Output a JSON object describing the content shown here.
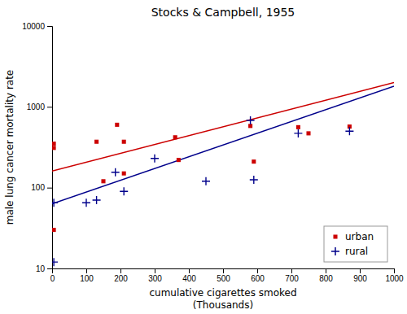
{
  "chart_data": {
    "type": "scatter",
    "title": "Stocks & Campbell, 1955",
    "xlabel": [
      "cumulative cigarettes smoked",
      "(Thousands)"
    ],
    "ylabel": "male lung cancer mortality rate",
    "xlim": [
      0,
      1000
    ],
    "ylim": [
      10,
      10000
    ],
    "xticks": [
      0,
      100,
      200,
      300,
      400,
      500,
      600,
      700,
      800,
      900,
      1000
    ],
    "yticks": [
      10,
      100,
      1000,
      10000
    ],
    "log": "y",
    "grid": false,
    "legend": "lower right",
    "series": [
      {
        "name": "urban",
        "type": "scatter",
        "marker": "square",
        "color": "#CC0000",
        "x": [
          5,
          5,
          5,
          130,
          150,
          190,
          210,
          210,
          360,
          370,
          580,
          590,
          720,
          750,
          870
        ],
        "values": [
          310,
          30,
          350,
          370,
          120,
          600,
          150,
          370,
          420,
          220,
          580,
          210,
          560,
          470,
          570
        ]
      },
      {
        "name": "rural",
        "type": "scatter",
        "marker": "plus",
        "color": "#00008B",
        "x": [
          5,
          5,
          100,
          130,
          185,
          210,
          300,
          450,
          580,
          590,
          720,
          870
        ],
        "values": [
          12,
          65,
          65,
          70,
          155,
          90,
          230,
          120,
          680,
          125,
          470,
          500
        ]
      },
      {
        "type": "line",
        "color": "#CC0000",
        "x": [
          0,
          1000
        ],
        "values": [
          160,
          2000
        ]
      },
      {
        "type": "line",
        "color": "#00008B",
        "x": [
          0,
          1000
        ],
        "values": [
          63,
          1800
        ]
      }
    ]
  }
}
